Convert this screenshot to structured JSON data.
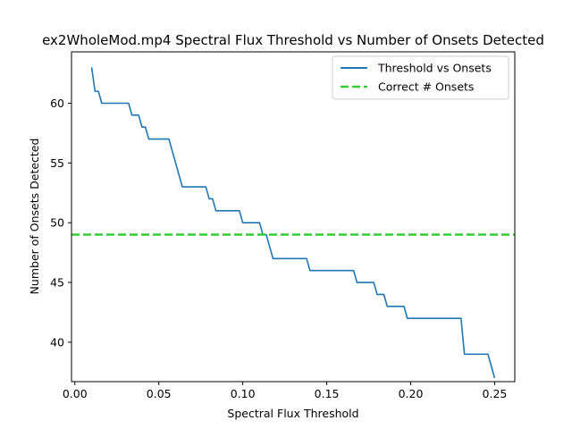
{
  "chart_data": {
    "type": "line",
    "title": "ex2WholeMod.mp4 Spectral Flux Threshold vs Number of Onsets Detected",
    "xlabel": "Spectral Flux Threshold",
    "ylabel": "Number of Onsets Detected",
    "xlim": [
      -0.002,
      0.262
    ],
    "ylim": [
      36.7,
      64.3
    ],
    "xticks": [
      0.0,
      0.05,
      0.1,
      0.15,
      0.2,
      0.25
    ],
    "xtick_labels": [
      "0.00",
      "0.05",
      "0.10",
      "0.15",
      "0.20",
      "0.25"
    ],
    "yticks": [
      40,
      45,
      50,
      55,
      60
    ],
    "ytick_labels": [
      "40",
      "45",
      "50",
      "55",
      "60"
    ],
    "grid": false,
    "legend_position": "top-right",
    "series": [
      {
        "name": "Threshold vs Onsets",
        "color": "#1f77b4",
        "style": "solid",
        "x": [
          0.01,
          0.012,
          0.014,
          0.016,
          0.018,
          0.02,
          0.022,
          0.024,
          0.026,
          0.028,
          0.03,
          0.032,
          0.034,
          0.036,
          0.038,
          0.04,
          0.042,
          0.044,
          0.046,
          0.048,
          0.05,
          0.052,
          0.054,
          0.056,
          0.058,
          0.06,
          0.062,
          0.064,
          0.066,
          0.068,
          0.07,
          0.072,
          0.074,
          0.076,
          0.078,
          0.08,
          0.082,
          0.084,
          0.086,
          0.088,
          0.09,
          0.092,
          0.094,
          0.096,
          0.098,
          0.1,
          0.102,
          0.104,
          0.106,
          0.108,
          0.11,
          0.112,
          0.114,
          0.116,
          0.118,
          0.12,
          0.122,
          0.124,
          0.126,
          0.128,
          0.13,
          0.132,
          0.134,
          0.136,
          0.138,
          0.14,
          0.142,
          0.144,
          0.146,
          0.148,
          0.15,
          0.152,
          0.154,
          0.156,
          0.158,
          0.16,
          0.162,
          0.164,
          0.166,
          0.168,
          0.17,
          0.172,
          0.174,
          0.176,
          0.178,
          0.18,
          0.182,
          0.184,
          0.186,
          0.188,
          0.19,
          0.192,
          0.194,
          0.196,
          0.198,
          0.2,
          0.202,
          0.204,
          0.206,
          0.208,
          0.21,
          0.212,
          0.214,
          0.216,
          0.218,
          0.22,
          0.222,
          0.224,
          0.226,
          0.228,
          0.23,
          0.232,
          0.234,
          0.236,
          0.238,
          0.24,
          0.242,
          0.244,
          0.246,
          0.248,
          0.25
        ],
        "values": [
          63,
          61,
          61,
          60,
          60,
          60,
          60,
          60,
          60,
          60,
          60,
          60,
          59,
          59,
          59,
          58,
          58,
          57,
          57,
          57,
          57,
          57,
          57,
          57,
          56,
          55,
          54,
          53,
          53,
          53,
          53,
          53,
          53,
          53,
          53,
          52,
          52,
          51,
          51,
          51,
          51,
          51,
          51,
          51,
          51,
          50,
          50,
          50,
          50,
          50,
          50,
          49,
          49,
          48,
          47,
          47,
          47,
          47,
          47,
          47,
          47,
          47,
          47,
          47,
          47,
          46,
          46,
          46,
          46,
          46,
          46,
          46,
          46,
          46,
          46,
          46,
          46,
          46,
          46,
          45,
          45,
          45,
          45,
          45,
          45,
          44,
          44,
          44,
          43,
          43,
          43,
          43,
          43,
          43,
          42,
          42,
          42,
          42,
          42,
          42,
          42,
          42,
          42,
          42,
          42,
          42,
          42,
          42,
          42,
          42,
          42,
          39,
          39,
          39,
          39,
          39,
          39,
          39,
          39,
          38,
          37
        ]
      },
      {
        "name": "Correct # Onsets",
        "color": "#32cd32",
        "style": "dashed",
        "constant_y": 49
      }
    ]
  }
}
